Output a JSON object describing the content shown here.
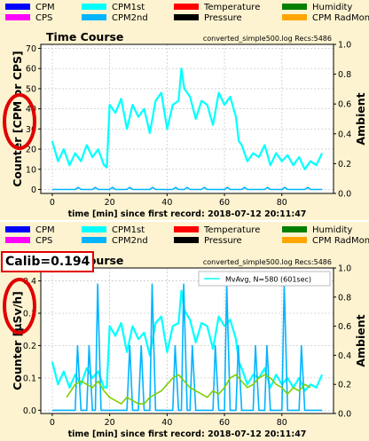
{
  "legend_items": [
    {
      "label": "CPM",
      "color": "#0000ff",
      "col": 0,
      "row": 0
    },
    {
      "label": "CPM1st",
      "color": "#00ffff",
      "col": 1,
      "row": 0
    },
    {
      "label": "Temperature",
      "color": "#ff0000",
      "col": 2,
      "row": 0
    },
    {
      "label": "Humidity",
      "color": "#008000",
      "col": 3,
      "row": 0
    },
    {
      "label": "CPS",
      "color": "#ff00ff",
      "col": 0,
      "row": 1
    },
    {
      "label": "CPM2nd",
      "color": "#00b4ff",
      "col": 1,
      "row": 1
    },
    {
      "label": "Pressure",
      "color": "#000000",
      "col": 2,
      "row": 1
    },
    {
      "label": "CPM RadMon",
      "color": "#ffa500",
      "col": 3,
      "row": 1
    }
  ],
  "calib_label": "Calib=0.194",
  "chart_data": [
    {
      "type": "line",
      "title": "Time Course",
      "file_info": "converted_simple500.log  Recs:5486",
      "xlabel": "time [min] since first record: 2018-07-12 20:11:47",
      "ylabel": "Counter  [CPM or CPS]",
      "y2label": "Ambient",
      "xlim": [
        -4,
        98
      ],
      "ylim": [
        -2,
        72
      ],
      "y2lim": [
        0,
        1.0
      ],
      "xticks": [
        0,
        20,
        40,
        60,
        80
      ],
      "yticks": [
        0,
        10,
        20,
        30,
        40,
        50,
        60,
        70
      ],
      "y2ticks": [
        0.0,
        0.2,
        0.4,
        0.6,
        0.8,
        1.0
      ],
      "series": [
        {
          "color": "#00ffff",
          "x": [
            0,
            2,
            4,
            6,
            8,
            10,
            12,
            14,
            16,
            18,
            19,
            20,
            22,
            24,
            26,
            28,
            30,
            32,
            34,
            36,
            38,
            40,
            42,
            44,
            45,
            46,
            48,
            50,
            52,
            54,
            56,
            58,
            60,
            62,
            64,
            65,
            66,
            68,
            70,
            72,
            74,
            76,
            78,
            80,
            82,
            84,
            86,
            88,
            90,
            92,
            94
          ],
          "y": [
            24,
            14,
            20,
            12,
            18,
            14,
            22,
            16,
            20,
            12,
            11,
            42,
            38,
            45,
            30,
            42,
            36,
            40,
            28,
            44,
            48,
            30,
            42,
            44,
            60,
            50,
            46,
            35,
            44,
            42,
            32,
            48,
            42,
            46,
            36,
            24,
            22,
            14,
            18,
            16,
            22,
            12,
            18,
            14,
            17,
            12,
            16,
            10,
            14,
            12,
            18
          ]
        },
        {
          "color": "#00b4ff",
          "x": [
            0,
            8,
            9,
            10,
            14,
            15,
            16,
            20,
            21,
            22,
            26,
            27,
            28,
            34,
            35,
            36,
            42,
            43,
            44,
            46,
            47,
            48,
            52,
            53,
            54,
            60,
            61,
            62,
            66,
            67,
            68,
            74,
            75,
            76,
            80,
            81,
            82,
            88,
            89,
            90,
            94
          ],
          "y": [
            0,
            0,
            1,
            0,
            0,
            1,
            0,
            0,
            1,
            0,
            0,
            1,
            0,
            0,
            1,
            0,
            0,
            1,
            0,
            0,
            1,
            0,
            0,
            1,
            0,
            0,
            1,
            0,
            0,
            1,
            0,
            0,
            1,
            0,
            0,
            1,
            0,
            0,
            1,
            0,
            0
          ]
        }
      ]
    },
    {
      "type": "line",
      "title": "Time Course",
      "file_info": "converted_simple500.log  Recs:5486",
      "xlabel": "time [min] since first record: 2018-07-12 20:11:47",
      "ylabel": "Counter  [µSv/h]",
      "y2label": "Ambient",
      "legend": "MvAvg, N=580 (601sec)",
      "xlim": [
        -4,
        98
      ],
      "ylim": [
        -0.01,
        0.44
      ],
      "y2lim": [
        0,
        1.0
      ],
      "xticks": [
        0,
        20,
        40,
        60,
        80
      ],
      "yticks": [
        0.0,
        0.1,
        0.2,
        0.3,
        0.4
      ],
      "y2ticks": [
        0.0,
        0.2,
        0.4,
        0.6,
        0.8,
        1.0
      ],
      "series": [
        {
          "name": "CPM1st",
          "color": "#00ffff",
          "x": [
            0,
            2,
            4,
            6,
            8,
            10,
            12,
            14,
            16,
            18,
            19,
            20,
            22,
            24,
            26,
            28,
            30,
            32,
            34,
            36,
            38,
            40,
            42,
            44,
            45,
            46,
            48,
            50,
            52,
            54,
            56,
            58,
            60,
            62,
            64,
            65,
            66,
            68,
            70,
            72,
            74,
            76,
            78,
            80,
            82,
            84,
            86,
            88,
            90,
            92,
            94
          ],
          "y": [
            0.15,
            0.08,
            0.12,
            0.07,
            0.11,
            0.08,
            0.13,
            0.1,
            0.12,
            0.07,
            0.07,
            0.26,
            0.23,
            0.27,
            0.18,
            0.26,
            0.22,
            0.24,
            0.17,
            0.27,
            0.29,
            0.18,
            0.26,
            0.27,
            0.37,
            0.31,
            0.28,
            0.21,
            0.27,
            0.26,
            0.19,
            0.29,
            0.26,
            0.28,
            0.22,
            0.15,
            0.13,
            0.08,
            0.11,
            0.1,
            0.13,
            0.07,
            0.11,
            0.08,
            0.1,
            0.07,
            0.1,
            0.06,
            0.08,
            0.07,
            0.11
          ]
        },
        {
          "name": "CPM2nd",
          "color": "#00b4ff",
          "x": [
            0,
            8,
            8.8,
            10,
            12,
            12.8,
            14,
            15,
            15.8,
            17,
            26,
            27,
            28,
            30,
            31,
            32,
            34,
            34.8,
            36,
            42,
            42.8,
            44,
            45,
            45.8,
            47,
            48,
            48.8,
            50,
            56,
            56.8,
            58,
            60,
            60.8,
            62,
            64,
            64.8,
            66,
            70,
            70.8,
            72,
            74,
            74.8,
            76,
            80,
            80.8,
            82,
            86,
            86.8,
            88,
            94
          ],
          "y": [
            0,
            0,
            0.2,
            0,
            0,
            0.2,
            0,
            0,
            0.39,
            0,
            0,
            0.2,
            0,
            0,
            0.2,
            0,
            0,
            0.39,
            0,
            0,
            0.2,
            0,
            0,
            0.39,
            0,
            0,
            0.2,
            0,
            0,
            0.2,
            0,
            0,
            0.39,
            0,
            0,
            0.2,
            0,
            0,
            0.2,
            0,
            0,
            0.2,
            0,
            0,
            0.39,
            0,
            0,
            0.2,
            0,
            0
          ]
        },
        {
          "name": "MvAvg",
          "color": "#7fcf00",
          "x": [
            5,
            8,
            10,
            12,
            14,
            16,
            18,
            20,
            22,
            24,
            26,
            28,
            30,
            32,
            34,
            36,
            38,
            40,
            42,
            44,
            46,
            48,
            50,
            52,
            54,
            56,
            58,
            60,
            62,
            64,
            66,
            68,
            70,
            72,
            74,
            76,
            78,
            80,
            82,
            84,
            86,
            88,
            90
          ],
          "y": [
            0.04,
            0.08,
            0.09,
            0.08,
            0.07,
            0.09,
            0.06,
            0.04,
            0.03,
            0.02,
            0.04,
            0.03,
            0.02,
            0.02,
            0.04,
            0.05,
            0.06,
            0.08,
            0.1,
            0.11,
            0.09,
            0.07,
            0.06,
            0.05,
            0.04,
            0.06,
            0.05,
            0.07,
            0.1,
            0.11,
            0.09,
            0.07,
            0.08,
            0.1,
            0.11,
            0.1,
            0.08,
            0.07,
            0.05,
            0.07,
            0.06,
            0.08,
            0.07
          ]
        }
      ]
    }
  ]
}
